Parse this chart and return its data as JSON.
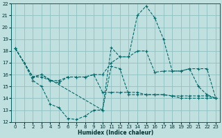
{
  "background_color": "#c0e0e0",
  "grid_color": "#90c0c0",
  "line_color": "#006868",
  "xlabel": "Humidex (Indice chaleur)",
  "xlim": [
    -0.5,
    23.5
  ],
  "ylim": [
    12,
    22
  ],
  "yticks": [
    12,
    13,
    14,
    15,
    16,
    17,
    18,
    19,
    20,
    21,
    22
  ],
  "xticks": [
    0,
    1,
    2,
    3,
    4,
    5,
    6,
    7,
    8,
    9,
    10,
    11,
    12,
    13,
    14,
    15,
    16,
    17,
    18,
    19,
    20,
    21,
    22,
    23
  ],
  "series": [
    {
      "x": [
        0,
        2,
        3,
        10,
        11,
        12,
        13,
        14,
        15,
        16,
        17,
        18,
        19,
        20,
        21,
        22,
        23
      ],
      "y": [
        18.2,
        15.8,
        16.0,
        13.0,
        18.3,
        17.5,
        17.5,
        21.0,
        21.8,
        20.8,
        19.0,
        16.3,
        16.3,
        16.5,
        15.0,
        14.3,
        14.0
      ]
    },
    {
      "x": [
        0,
        2,
        3,
        4,
        5,
        6,
        7,
        8,
        9,
        10,
        11,
        12,
        13,
        14,
        15,
        16,
        17,
        18,
        19,
        20,
        21,
        22,
        23
      ],
      "y": [
        18.2,
        15.8,
        16.0,
        15.5,
        15.5,
        15.8,
        15.8,
        15.8,
        16.0,
        16.0,
        17.0,
        17.5,
        17.5,
        18.0,
        18.0,
        16.2,
        16.3,
        16.3,
        16.3,
        16.5,
        16.5,
        16.5,
        14.0
      ]
    },
    {
      "x": [
        0,
        2,
        3,
        4,
        5,
        6,
        7,
        8,
        9,
        10,
        11,
        12,
        13,
        14,
        15,
        16,
        17,
        18,
        19,
        20,
        21,
        22,
        23
      ],
      "y": [
        18.2,
        15.8,
        15.8,
        15.5,
        15.3,
        15.8,
        15.8,
        15.8,
        16.0,
        14.5,
        14.5,
        14.5,
        14.5,
        14.5,
        14.3,
        14.3,
        14.3,
        14.2,
        14.2,
        14.2,
        14.2,
        14.2,
        14.0
      ]
    },
    {
      "x": [
        0,
        1,
        2,
        3,
        4,
        5,
        6,
        7,
        8,
        9,
        10,
        11,
        12,
        13,
        14,
        15,
        16,
        17,
        18,
        19,
        20,
        21,
        22,
        23
      ],
      "y": [
        18.2,
        17.0,
        15.5,
        15.0,
        13.5,
        13.2,
        12.3,
        12.2,
        12.5,
        13.0,
        13.0,
        16.7,
        16.5,
        14.3,
        14.3,
        14.3,
        14.3,
        14.3,
        14.2,
        14.0,
        14.0,
        14.0,
        14.0,
        14.0
      ]
    }
  ]
}
